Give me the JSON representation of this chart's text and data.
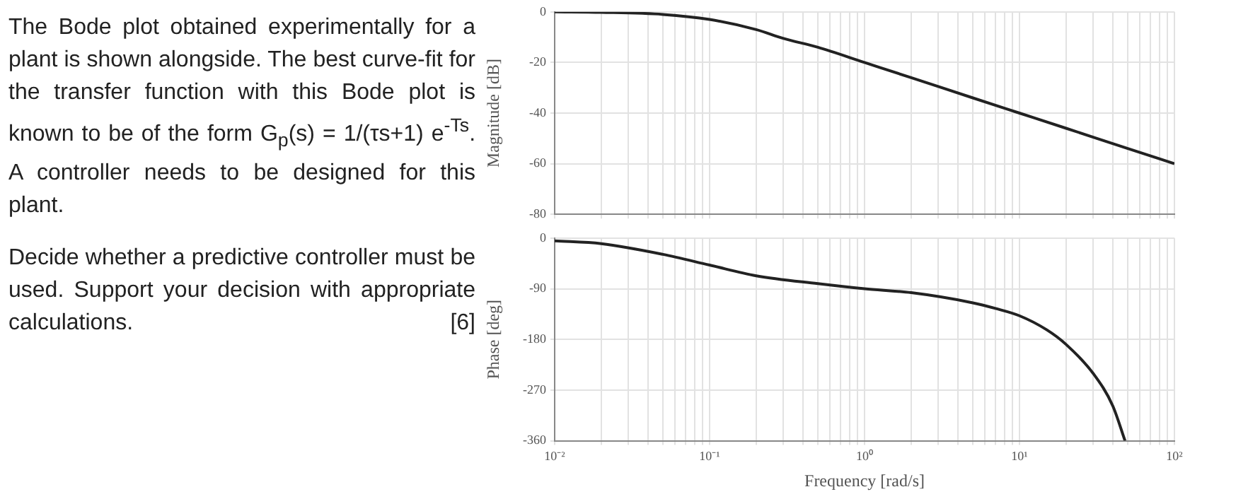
{
  "chart_data": [
    {
      "type": "line",
      "ylabel": "Magnitude [dB]",
      "annotations": [
        "The Bode plot obtained experimentally for a plant is shown alongside. The best curve-fit for the transfer function with this Bode plot is known to be of the form G$_{p}$(s) = 1/(τs+1) e$^{-Ts}$. A controller needs to be designed for this plant.",
        "Decide whether a predictive controller must be used. Support your decision with appropriate calculations.",
        "[6]"
      ],
      "series": [
        {
          "color": "#222222",
          "x": [
            0.01,
            0.02,
            0.05,
            0.1,
            0.2,
            0.3,
            0.5,
            1,
            2,
            5,
            10,
            20,
            50,
            100
          ],
          "values": [
            0,
            -0.2,
            -1,
            -3,
            -7,
            -10.5,
            -14,
            -20,
            -26,
            -34,
            -40,
            -46,
            -54,
            -60
          ]
        }
      ],
      "xlim": [
        0.01,
        100
      ],
      "ylim": [
        -80,
        0
      ],
      "yticks": [
        -80,
        -60,
        -40,
        -20,
        0
      ],
      "xticks": [
        {
          "value": 0.01,
          "label": null
        },
        {
          "value": 0.02,
          "label": null
        },
        {
          "value": 0.03,
          "label": null
        },
        {
          "value": 0.04,
          "label": null
        },
        {
          "value": 0.05,
          "label": null
        },
        {
          "value": 0.06,
          "label": null
        },
        {
          "value": 0.07,
          "label": null
        },
        {
          "value": 0.08,
          "label": null
        },
        {
          "value": 0.09,
          "label": null
        },
        {
          "value": 0.1,
          "label": null
        },
        {
          "value": 0.2,
          "label": null
        },
        {
          "value": 0.3,
          "label": null
        },
        {
          "value": 0.4,
          "label": null
        },
        {
          "value": 0.5,
          "label": null
        },
        {
          "value": 0.6,
          "label": null
        },
        {
          "value": 0.7,
          "label": null
        },
        {
          "value": 0.8,
          "label": null
        },
        {
          "value": 0.9,
          "label": null
        },
        {
          "value": 1,
          "label": null
        },
        {
          "value": 2,
          "label": null
        },
        {
          "value": 3,
          "label": null
        },
        {
          "value": 4,
          "label": null
        },
        {
          "value": 5,
          "label": null
        },
        {
          "value": 6,
          "label": null
        },
        {
          "value": 7,
          "label": null
        },
        {
          "value": 8,
          "label": null
        },
        {
          "value": 9,
          "label": null
        },
        {
          "value": 10,
          "label": null
        },
        {
          "value": 20,
          "label": null
        },
        {
          "value": 30,
          "label": null
        },
        {
          "value": 40,
          "label": null
        },
        {
          "value": 50,
          "label": null
        },
        {
          "value": 60,
          "label": null
        },
        {
          "value": 70,
          "label": null
        },
        {
          "value": 80,
          "label": null
        },
        {
          "value": 90,
          "label": null
        },
        {
          "value": 100,
          "label": null
        }
      ],
      "log": "x",
      "grid": true,
      "legend": false,
      "tick_labels": "y"
    },
    {
      "type": "line",
      "xlabel": "Frequency [rad/s]",
      "ylabel": "Phase [deg]",
      "series": [
        {
          "color": "#222222",
          "x": [
            0.01,
            0.02,
            0.05,
            0.1,
            0.2,
            0.5,
            1,
            2,
            5,
            7,
            10,
            15,
            20,
            30,
            40,
            48
          ],
          "values": [
            -5,
            -10,
            -29,
            -48,
            -67,
            -81,
            -90,
            -97,
            -115,
            -125,
            -138,
            -163,
            -189,
            -241,
            -298,
            -360
          ]
        }
      ],
      "xlim": [
        0.01,
        100
      ],
      "ylim": [
        -360,
        0
      ],
      "yticks": [
        -360,
        -270,
        -180,
        -90,
        0
      ],
      "xticks": [
        {
          "value": 0.01,
          "label": "10⁻²"
        },
        {
          "value": 0.02,
          "label": null
        },
        {
          "value": 0.03,
          "label": null
        },
        {
          "value": 0.04,
          "label": null
        },
        {
          "value": 0.05,
          "label": null
        },
        {
          "value": 0.06,
          "label": null
        },
        {
          "value": 0.07,
          "label": null
        },
        {
          "value": 0.08,
          "label": null
        },
        {
          "value": 0.09,
          "label": null
        },
        {
          "value": 0.1,
          "label": "10⁻¹"
        },
        {
          "value": 0.2,
          "label": null
        },
        {
          "value": 0.3,
          "label": null
        },
        {
          "value": 0.4,
          "label": null
        },
        {
          "value": 0.5,
          "label": null
        },
        {
          "value": 0.6,
          "label": null
        },
        {
          "value": 0.7,
          "label": null
        },
        {
          "value": 0.8,
          "label": null
        },
        {
          "value": 0.9,
          "label": null
        },
        {
          "value": 1,
          "label": "10⁰"
        },
        {
          "value": 2,
          "label": null
        },
        {
          "value": 3,
          "label": null
        },
        {
          "value": 4,
          "label": null
        },
        {
          "value": 5,
          "label": null
        },
        {
          "value": 6,
          "label": null
        },
        {
          "value": 7,
          "label": null
        },
        {
          "value": 8,
          "label": null
        },
        {
          "value": 9,
          "label": null
        },
        {
          "value": 10,
          "label": "10¹"
        },
        {
          "value": 20,
          "label": null
        },
        {
          "value": 30,
          "label": null
        },
        {
          "value": 40,
          "label": null
        },
        {
          "value": 50,
          "label": null
        },
        {
          "value": 60,
          "label": null
        },
        {
          "value": 70,
          "label": null
        },
        {
          "value": 80,
          "label": null
        },
        {
          "value": 90,
          "label": null
        },
        {
          "value": 100,
          "label": "10²"
        }
      ],
      "log": "x",
      "grid": true,
      "legend": false
    }
  ]
}
